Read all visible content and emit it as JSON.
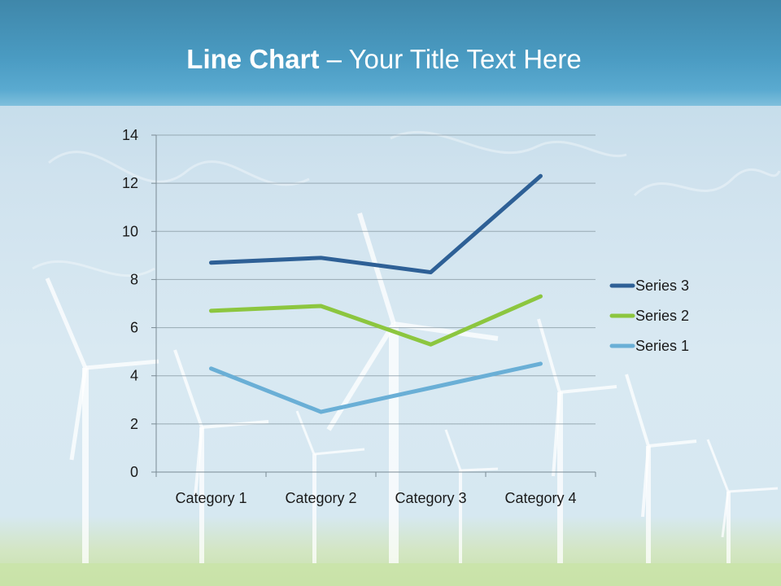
{
  "slide": {
    "title_bold": "Line Chart",
    "title_rest": " – Your Title Text Here"
  },
  "colors": {
    "header": "#4a9bc2",
    "series_3": "#2e6096",
    "series_2": "#8cc63f",
    "series_1": "#6aafd6"
  },
  "chart_data": {
    "type": "line",
    "categories": [
      "Category 1",
      "Category 2",
      "Category 3",
      "Category 4"
    ],
    "series": [
      {
        "name": "Series 3",
        "values": [
          8.7,
          8.9,
          8.3,
          12.3
        ],
        "color": "#2e6096"
      },
      {
        "name": "Series 2",
        "values": [
          6.7,
          6.9,
          5.3,
          7.3
        ],
        "color": "#8cc63f"
      },
      {
        "name": "Series 1",
        "values": [
          4.3,
          2.5,
          3.5,
          4.5
        ],
        "color": "#6aafd6"
      }
    ],
    "ylim": [
      0,
      14
    ],
    "yticks": [
      0,
      2,
      4,
      6,
      8,
      10,
      12,
      14
    ],
    "grid": true,
    "legend": "right"
  }
}
